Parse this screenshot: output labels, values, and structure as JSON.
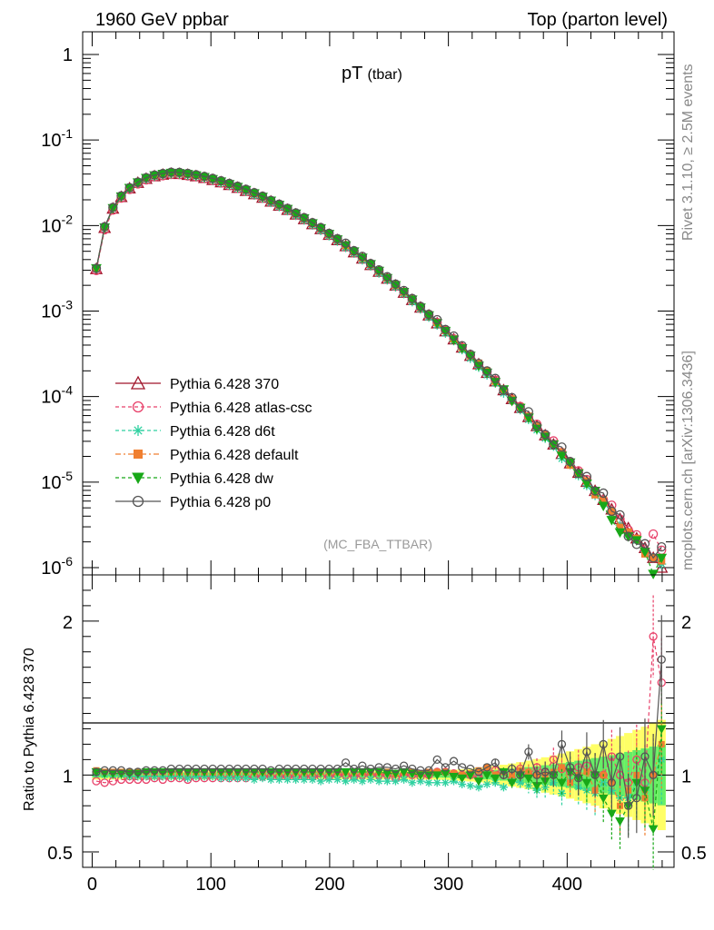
{
  "header": {
    "left": "1960 GeV ppbar",
    "right": "Top (parton level)"
  },
  "side": {
    "rivet": "Rivet 3.1.10, ≥ 2.5M events",
    "mcplots": "mcplots.cern.ch [arXiv:1306.3436]"
  },
  "main_title": "pT",
  "main_title_sub": "(tbar)",
  "analysis": "(MC_FBA_TTBAR)",
  "ratio_ylabel": "Ratio to Pythia 6.428 370",
  "colors": {
    "s370": "#a0142a",
    "atlas": "#e8416a",
    "d6t": "#2ed1a0",
    "default": "#f07f30",
    "dw": "#18a818",
    "p0": "#555555",
    "band_yellow": "#ffff66",
    "band_green": "#66ee66"
  },
  "legend": [
    {
      "label": "Pythia 6.428 370",
      "color": "#a0142a",
      "marker": "triangle-up",
      "dash": "solid"
    },
    {
      "label": "Pythia 6.428 atlas-csc",
      "color": "#e8416a",
      "marker": "circle-open",
      "dash": "dash"
    },
    {
      "label": "Pythia 6.428 d6t",
      "color": "#2ed1a0",
      "marker": "star",
      "dash": "dash"
    },
    {
      "label": "Pythia 6.428 default",
      "color": "#f07f30",
      "marker": "square",
      "dash": "dashdot"
    },
    {
      "label": "Pythia 6.428 dw",
      "color": "#18a818",
      "marker": "triangle-down",
      "dash": "dash"
    },
    {
      "label": "Pythia 6.428 p0",
      "color": "#555555",
      "marker": "circle-open",
      "dash": "solid"
    }
  ],
  "chart_data": {
    "type": "line",
    "x": [
      3.5,
      10.5,
      17.5,
      24.5,
      31.5,
      38.5,
      45.5,
      52.5,
      59.5,
      66.5,
      73.5,
      80.5,
      87.5,
      94.5,
      101.5,
      108.5,
      115.5,
      122.5,
      129.5,
      136.5,
      143.5,
      150.5,
      157.5,
      164.5,
      171.5,
      178.5,
      185.5,
      192.5,
      199.5,
      206.5,
      213.5,
      220.5,
      227.5,
      234.5,
      241.5,
      248.5,
      255.5,
      262.5,
      269.5,
      276.5,
      283.5,
      290.5,
      297.5,
      304.5,
      311.5,
      318.5,
      325.5,
      332.5,
      339.5,
      346.5,
      353.5,
      360.5,
      367.5,
      374.5,
      381.5,
      388.5,
      395.5,
      402.5,
      409.5,
      416.5,
      423.5,
      430.5,
      437.5,
      444.5,
      451.5,
      458.5,
      465.5,
      472.5,
      479.5
    ],
    "series": [
      {
        "name": "Pythia 6.428 370",
        "key": "s370",
        "values": [
          0.0031,
          0.0094,
          0.0158,
          0.0216,
          0.0272,
          0.0316,
          0.0352,
          0.0378,
          0.0394,
          0.0404,
          0.0402,
          0.0392,
          0.0378,
          0.0361,
          0.0342,
          0.0321,
          0.0299,
          0.0277,
          0.0255,
          0.0233,
          0.0212,
          0.0191,
          0.0171,
          0.0153,
          0.0135,
          0.0119,
          0.0104,
          0.0091,
          0.0078,
          0.00675,
          0.00575,
          0.00488,
          0.00412,
          0.00346,
          0.00289,
          0.0024,
          0.00199,
          0.00164,
          0.00135,
          0.0011,
          0.00089,
          0.00072,
          0.00058,
          0.000468,
          0.000375,
          0.0003,
          0.000239,
          0.00019,
          0.000151,
          0.000119,
          9.37e-05,
          7.37e-05,
          5.78e-05,
          4.52e-05,
          3.53e-05,
          2.76e-05,
          2.14e-05,
          1.66e-05,
          1.29e-05,
          1.01e-05,
          7.9e-06,
          6.2e-06,
          4.8e-06,
          3.7e-06,
          2.9e-06,
          2.2e-06,
          1.7e-06,
          1.3e-06,
          1e-06
        ]
      }
    ],
    "ratios": {
      "atlas": [
        0.96,
        0.95,
        0.96,
        0.97,
        0.97,
        0.97,
        0.97,
        0.98,
        0.97,
        0.98,
        0.98,
        0.97,
        0.98,
        0.98,
        0.98,
        0.98,
        0.98,
        0.98,
        0.98,
        0.99,
        0.99,
        0.99,
        0.99,
        0.99,
        0.99,
        0.99,
        0.99,
        0.99,
        0.99,
        1.0,
        1.0,
        0.99,
        1.0,
        1.0,
        1.0,
        1.0,
        0.98,
        1.0,
        1.0,
        0.99,
        1.0,
        1.02,
        1.02,
        1.01,
        1.0,
        1.0,
        0.98,
        1.02,
        1.03,
        1.0,
        0.97,
        1.04,
        1.0,
        1.05,
        1.02,
        1.1,
        1.04,
        1.02,
        1.05,
        1.06,
        1.0,
        1.0,
        1.12,
        1.0,
        0.95,
        1.1,
        0.95,
        1.9,
        1.6
      ],
      "d6t": [
        1.01,
        1.0,
        1.0,
        1.0,
        0.99,
        0.99,
        0.99,
        0.99,
        0.99,
        0.99,
        0.99,
        0.98,
        0.99,
        0.99,
        0.99,
        0.98,
        0.98,
        0.98,
        0.98,
        0.97,
        0.98,
        0.97,
        0.97,
        0.97,
        0.97,
        0.97,
        0.97,
        0.96,
        0.97,
        0.97,
        0.96,
        0.97,
        0.96,
        0.97,
        0.96,
        0.96,
        0.96,
        0.97,
        0.95,
        0.96,
        0.95,
        0.95,
        0.95,
        0.96,
        0.94,
        0.93,
        0.92,
        0.94,
        0.95,
        0.92,
        0.96,
        0.95,
        0.93,
        0.9,
        0.92,
        0.95,
        0.88,
        0.96,
        0.92,
        0.9,
        0.88,
        0.95,
        0.9,
        0.85,
        0.85,
        0.95,
        0.9,
        1.0,
        1.1
      ],
      "default": [
        1.03,
        1.02,
        1.02,
        1.02,
        1.02,
        1.02,
        1.02,
        1.02,
        1.02,
        1.02,
        1.02,
        1.02,
        1.02,
        1.02,
        1.02,
        1.02,
        1.02,
        1.02,
        1.02,
        1.02,
        1.02,
        1.02,
        1.02,
        1.02,
        1.02,
        1.02,
        1.02,
        1.02,
        1.02,
        1.02,
        1.02,
        1.02,
        1.02,
        1.02,
        1.02,
        1.02,
        1.01,
        1.02,
        1.02,
        1.01,
        1.02,
        1.02,
        1.02,
        1.01,
        1.0,
        1.01,
        1.03,
        1.05,
        1.0,
        1.02,
        1.0,
        1.03,
        1.02,
        1.0,
        1.0,
        1.02,
        1.05,
        0.95,
        1.0,
        1.02,
        0.9,
        1.0,
        0.95,
        0.8,
        0.9,
        1.0,
        0.85,
        1.0,
        1.2
      ],
      "dw": [
        1.02,
        1.01,
        1.01,
        1.01,
        1.01,
        1.01,
        1.02,
        1.02,
        1.02,
        1.02,
        1.02,
        1.02,
        1.02,
        1.02,
        1.02,
        1.02,
        1.02,
        1.02,
        1.02,
        1.02,
        1.02,
        1.02,
        1.02,
        1.02,
        1.02,
        1.02,
        1.02,
        1.02,
        1.02,
        1.02,
        1.02,
        1.02,
        1.02,
        1.02,
        1.02,
        1.01,
        1.01,
        1.02,
        1.01,
        1.0,
        1.0,
        1.0,
        1.01,
        0.99,
        0.98,
        1.0,
        0.96,
        1.0,
        0.98,
        1.02,
        0.95,
        1.0,
        0.98,
        0.93,
        0.96,
        1.0,
        0.95,
        1.02,
        0.98,
        0.95,
        1.0,
        0.85,
        0.75,
        0.7,
        0.8,
        0.95,
        0.9,
        0.65,
        1.3
      ],
      "p0": [
        1.02,
        1.03,
        1.03,
        1.03,
        1.02,
        1.02,
        1.03,
        1.03,
        1.03,
        1.04,
        1.04,
        1.04,
        1.04,
        1.04,
        1.04,
        1.04,
        1.04,
        1.04,
        1.04,
        1.04,
        1.04,
        1.03,
        1.04,
        1.04,
        1.04,
        1.04,
        1.04,
        1.04,
        1.04,
        1.04,
        1.08,
        1.04,
        1.06,
        1.04,
        1.05,
        1.05,
        1.04,
        1.06,
        1.04,
        1.03,
        1.03,
        1.1,
        1.05,
        1.09,
        1.05,
        1.04,
        1.02,
        1.05,
        1.08,
        1.0,
        1.04,
        1.0,
        1.15,
        1.0,
        1.02,
        1.0,
        1.2,
        1.05,
        0.98,
        1.15,
        1.0,
        1.2,
        0.95,
        1.12,
        0.8,
        0.85,
        1.12,
        1.0,
        1.75
      ]
    },
    "xlabel": "",
    "xlim": [
      -8,
      490
    ],
    "xticks": [
      0,
      100,
      200,
      300,
      400
    ],
    "main_ylim": [
      1e-06,
      2
    ],
    "main_yscale": "log",
    "main_yticks": [
      "1",
      "10^-1",
      "10^-2",
      "10^-3",
      "10^-4",
      "10^-5",
      "10^-6"
    ],
    "ratio_ylim": [
      0.4,
      2.3
    ],
    "ratio_yticks": [
      "0.5",
      "1",
      "2"
    ],
    "legend_position": "middle-left",
    "grid": false
  }
}
